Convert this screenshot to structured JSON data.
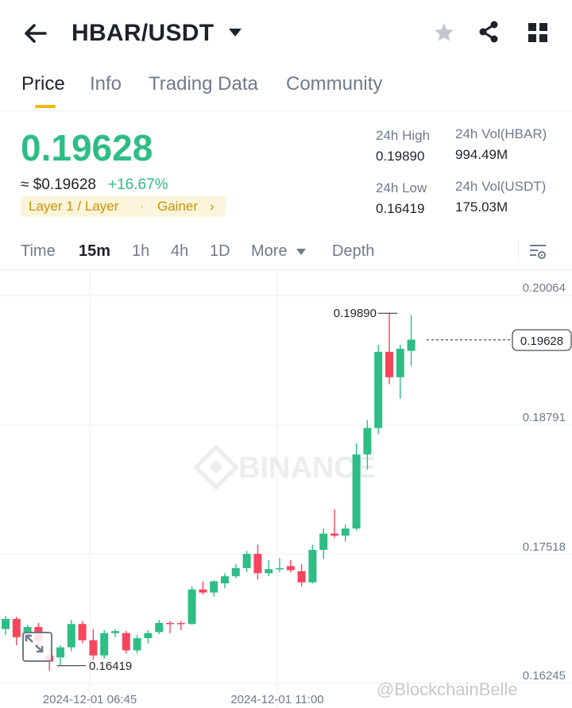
{
  "header": {
    "title": "HBAR/USDT",
    "icons": [
      "back-arrow-icon",
      "caret-down-icon",
      "star-icon",
      "share-icon",
      "grid-icon"
    ]
  },
  "tabs": [
    {
      "label": "Price",
      "active": true
    },
    {
      "label": "Info",
      "active": false
    },
    {
      "label": "Trading Data",
      "active": false
    },
    {
      "label": "Community",
      "active": false
    }
  ],
  "ticker": {
    "price": "0.19628",
    "usd_price": "≈ $0.19628",
    "change": "+16.67%",
    "tag_category": "Layer 1 / Layer",
    "tag_gainer": "Gainer",
    "high_label": "24h High",
    "high_value": "0.19890",
    "low_label": "24h Low",
    "low_value": "0.16419",
    "vol_base_label": "24h Vol(HBAR)",
    "vol_base_value": "994.49M",
    "vol_quote_label": "24h Vol(USDT)",
    "vol_quote_value": "175.03M",
    "up_color": "#2ebd85",
    "down_color": "#f6465d",
    "accent_color": "#f0b90b"
  },
  "intervals": [
    {
      "label": "Time",
      "active": false
    },
    {
      "label": "15m",
      "active": true
    },
    {
      "label": "1h",
      "active": false
    },
    {
      "label": "4h",
      "active": false
    },
    {
      "label": "1D",
      "active": false
    },
    {
      "label": "More",
      "active": false
    },
    {
      "label": "Depth",
      "active": false
    }
  ],
  "chart_data": {
    "type": "candlestick",
    "interval": "15m",
    "y_ticks": [
      "0.20064",
      "0.18791",
      "0.17518",
      "0.16245"
    ],
    "x_ticks": [
      "2024-12-01 06:45",
      "2024-12-01 11:00"
    ],
    "high_marker": "0.19890",
    "low_marker": "0.16419",
    "last_price_label": "0.19628",
    "watermark_logo": "BINANCE",
    "credit": "@BlockchainBelle",
    "candles": [
      {
        "o": 0.1678,
        "h": 0.1691,
        "l": 0.1672,
        "c": 0.1688
      },
      {
        "o": 0.1688,
        "h": 0.169,
        "l": 0.1662,
        "c": 0.167
      },
      {
        "o": 0.167,
        "h": 0.1682,
        "l": 0.1664,
        "c": 0.168
      },
      {
        "o": 0.168,
        "h": 0.1684,
        "l": 0.1661,
        "c": 0.1666
      },
      {
        "o": 0.1652,
        "h": 0.1658,
        "l": 0.1637,
        "c": 0.1646
      },
      {
        "o": 0.165,
        "h": 0.1662,
        "l": 0.1642,
        "c": 0.166
      },
      {
        "o": 0.166,
        "h": 0.1687,
        "l": 0.1656,
        "c": 0.1683
      },
      {
        "o": 0.1683,
        "h": 0.1686,
        "l": 0.1664,
        "c": 0.1667
      },
      {
        "o": 0.1667,
        "h": 0.1678,
        "l": 0.1648,
        "c": 0.1652
      },
      {
        "o": 0.1652,
        "h": 0.1677,
        "l": 0.1649,
        "c": 0.1674
      },
      {
        "o": 0.1674,
        "h": 0.1678,
        "l": 0.167,
        "c": 0.1676
      },
      {
        "o": 0.1674,
        "h": 0.1676,
        "l": 0.1654,
        "c": 0.1657
      },
      {
        "o": 0.1657,
        "h": 0.1672,
        "l": 0.1654,
        "c": 0.1669
      },
      {
        "o": 0.1669,
        "h": 0.1677,
        "l": 0.1664,
        "c": 0.1674
      },
      {
        "o": 0.1675,
        "h": 0.1687,
        "l": 0.1673,
        "c": 0.1684
      },
      {
        "o": 0.1684,
        "h": 0.1686,
        "l": 0.1674,
        "c": 0.1683
      },
      {
        "o": 0.1684,
        "h": 0.1686,
        "l": 0.1677,
        "c": 0.1683
      },
      {
        "o": 0.1683,
        "h": 0.172,
        "l": 0.1682,
        "c": 0.1717
      },
      {
        "o": 0.1717,
        "h": 0.1725,
        "l": 0.1712,
        "c": 0.1714
      },
      {
        "o": 0.1714,
        "h": 0.1726,
        "l": 0.171,
        "c": 0.1725
      },
      {
        "o": 0.1723,
        "h": 0.1733,
        "l": 0.1718,
        "c": 0.173
      },
      {
        "o": 0.173,
        "h": 0.1742,
        "l": 0.1728,
        "c": 0.1738
      },
      {
        "o": 0.1738,
        "h": 0.1755,
        "l": 0.1734,
        "c": 0.1752
      },
      {
        "o": 0.1752,
        "h": 0.1761,
        "l": 0.1727,
        "c": 0.1733
      },
      {
        "o": 0.1733,
        "h": 0.1746,
        "l": 0.173,
        "c": 0.1737
      },
      {
        "o": 0.1737,
        "h": 0.1748,
        "l": 0.1734,
        "c": 0.1738
      },
      {
        "o": 0.174,
        "h": 0.1746,
        "l": 0.1734,
        "c": 0.1736
      },
      {
        "o": 0.1735,
        "h": 0.1742,
        "l": 0.172,
        "c": 0.1724
      },
      {
        "o": 0.1724,
        "h": 0.1761,
        "l": 0.1723,
        "c": 0.1756
      },
      {
        "o": 0.1756,
        "h": 0.1777,
        "l": 0.1747,
        "c": 0.1772
      },
      {
        "o": 0.1772,
        "h": 0.1796,
        "l": 0.1768,
        "c": 0.177
      },
      {
        "o": 0.177,
        "h": 0.1781,
        "l": 0.1764,
        "c": 0.1777
      },
      {
        "o": 0.1777,
        "h": 0.1861,
        "l": 0.1775,
        "c": 0.185
      },
      {
        "o": 0.185,
        "h": 0.1884,
        "l": 0.1835,
        "c": 0.1876
      },
      {
        "o": 0.1876,
        "h": 0.1958,
        "l": 0.187,
        "c": 0.1951
      },
      {
        "o": 0.1951,
        "h": 0.1989,
        "l": 0.1919,
        "c": 0.1926
      },
      {
        "o": 0.1926,
        "h": 0.1958,
        "l": 0.1905,
        "c": 0.1954
      },
      {
        "o": 0.1952,
        "h": 0.1987,
        "l": 0.1937,
        "c": 0.1963
      }
    ]
  }
}
